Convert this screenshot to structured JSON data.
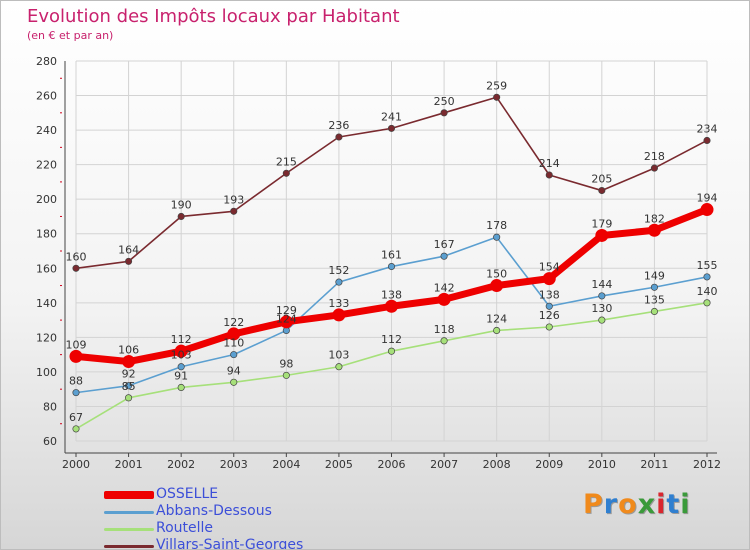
{
  "title": "Evolution des Impôts locaux par Habitant",
  "subtitle": "(en € et par an)",
  "logo": {
    "letters": [
      "P",
      "r",
      "o",
      "x",
      "i",
      "t",
      "i"
    ],
    "colors": [
      "#f08a1c",
      "#2f7fd0",
      "#f08a1c",
      "#3a9a3a",
      "#d9262e",
      "#2f7fd0",
      "#3a9a3a"
    ]
  },
  "chart_data": {
    "type": "line",
    "x": [
      "2000",
      "2001",
      "2002",
      "2003",
      "2004",
      "2005",
      "2006",
      "2007",
      "2008",
      "2009",
      "2010",
      "2011",
      "2012"
    ],
    "ylim": [
      60,
      280
    ],
    "yticks": [
      60,
      80,
      100,
      120,
      140,
      160,
      180,
      200,
      220,
      240,
      260,
      280
    ],
    "grid": true,
    "legend_position": "bottom-left",
    "series": [
      {
        "name": "OSSELLE",
        "color": "#ee0000",
        "values": [
          109,
          106,
          112,
          122,
          129,
          133,
          138,
          142,
          150,
          154,
          179,
          182,
          194
        ]
      },
      {
        "name": "Abbans-Dessous",
        "color": "#5b9fd0",
        "values": [
          88,
          92,
          103,
          110,
          124,
          152,
          161,
          167,
          178,
          138,
          144,
          149,
          155
        ]
      },
      {
        "name": "Routelle",
        "color": "#a6e07a",
        "values": [
          67,
          85,
          91,
          94,
          98,
          103,
          112,
          118,
          124,
          126,
          130,
          135,
          140
        ]
      },
      {
        "name": "Villars-Saint-Georges",
        "color": "#7a2a2f",
        "values": [
          160,
          164,
          190,
          193,
          215,
          236,
          241,
          250,
          259,
          214,
          205,
          218,
          234
        ]
      }
    ]
  }
}
